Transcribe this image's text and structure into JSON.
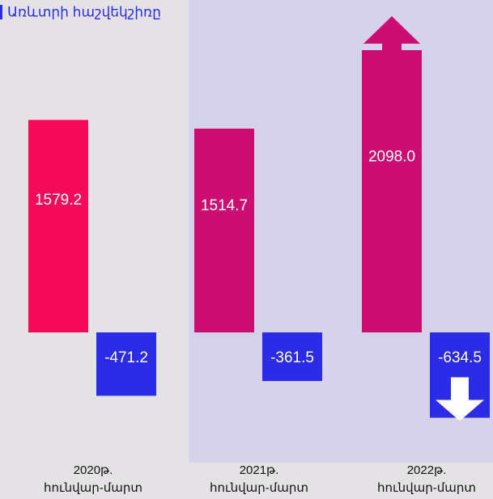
{
  "chart_data": {
    "type": "bar",
    "title": "Առևտրի հաշվեկշիռը",
    "categories": [
      [
        "2020թ.",
        "հունվար-մարտ"
      ],
      [
        "2021թ.",
        "հունվար-մարտ"
      ],
      [
        "2022թ.",
        "հունվար-մարտ"
      ]
    ],
    "series": [
      {
        "colors": [
          "#f50a5a",
          "#cc0e72",
          "#cc0e72"
        ],
        "values": [
          1579.2,
          1514.7,
          2098.0
        ],
        "value_labels": [
          "1579.2",
          "1514.7",
          "2098.0"
        ]
      },
      {
        "colors": [
          "#2b2be8",
          "#2b2be8",
          "#2b2be8"
        ],
        "values": [
          -471.2,
          -361.5,
          -634.5
        ],
        "value_labels": [
          "-471.2",
          "-361.5",
          "-634.5"
        ]
      }
    ]
  }
}
